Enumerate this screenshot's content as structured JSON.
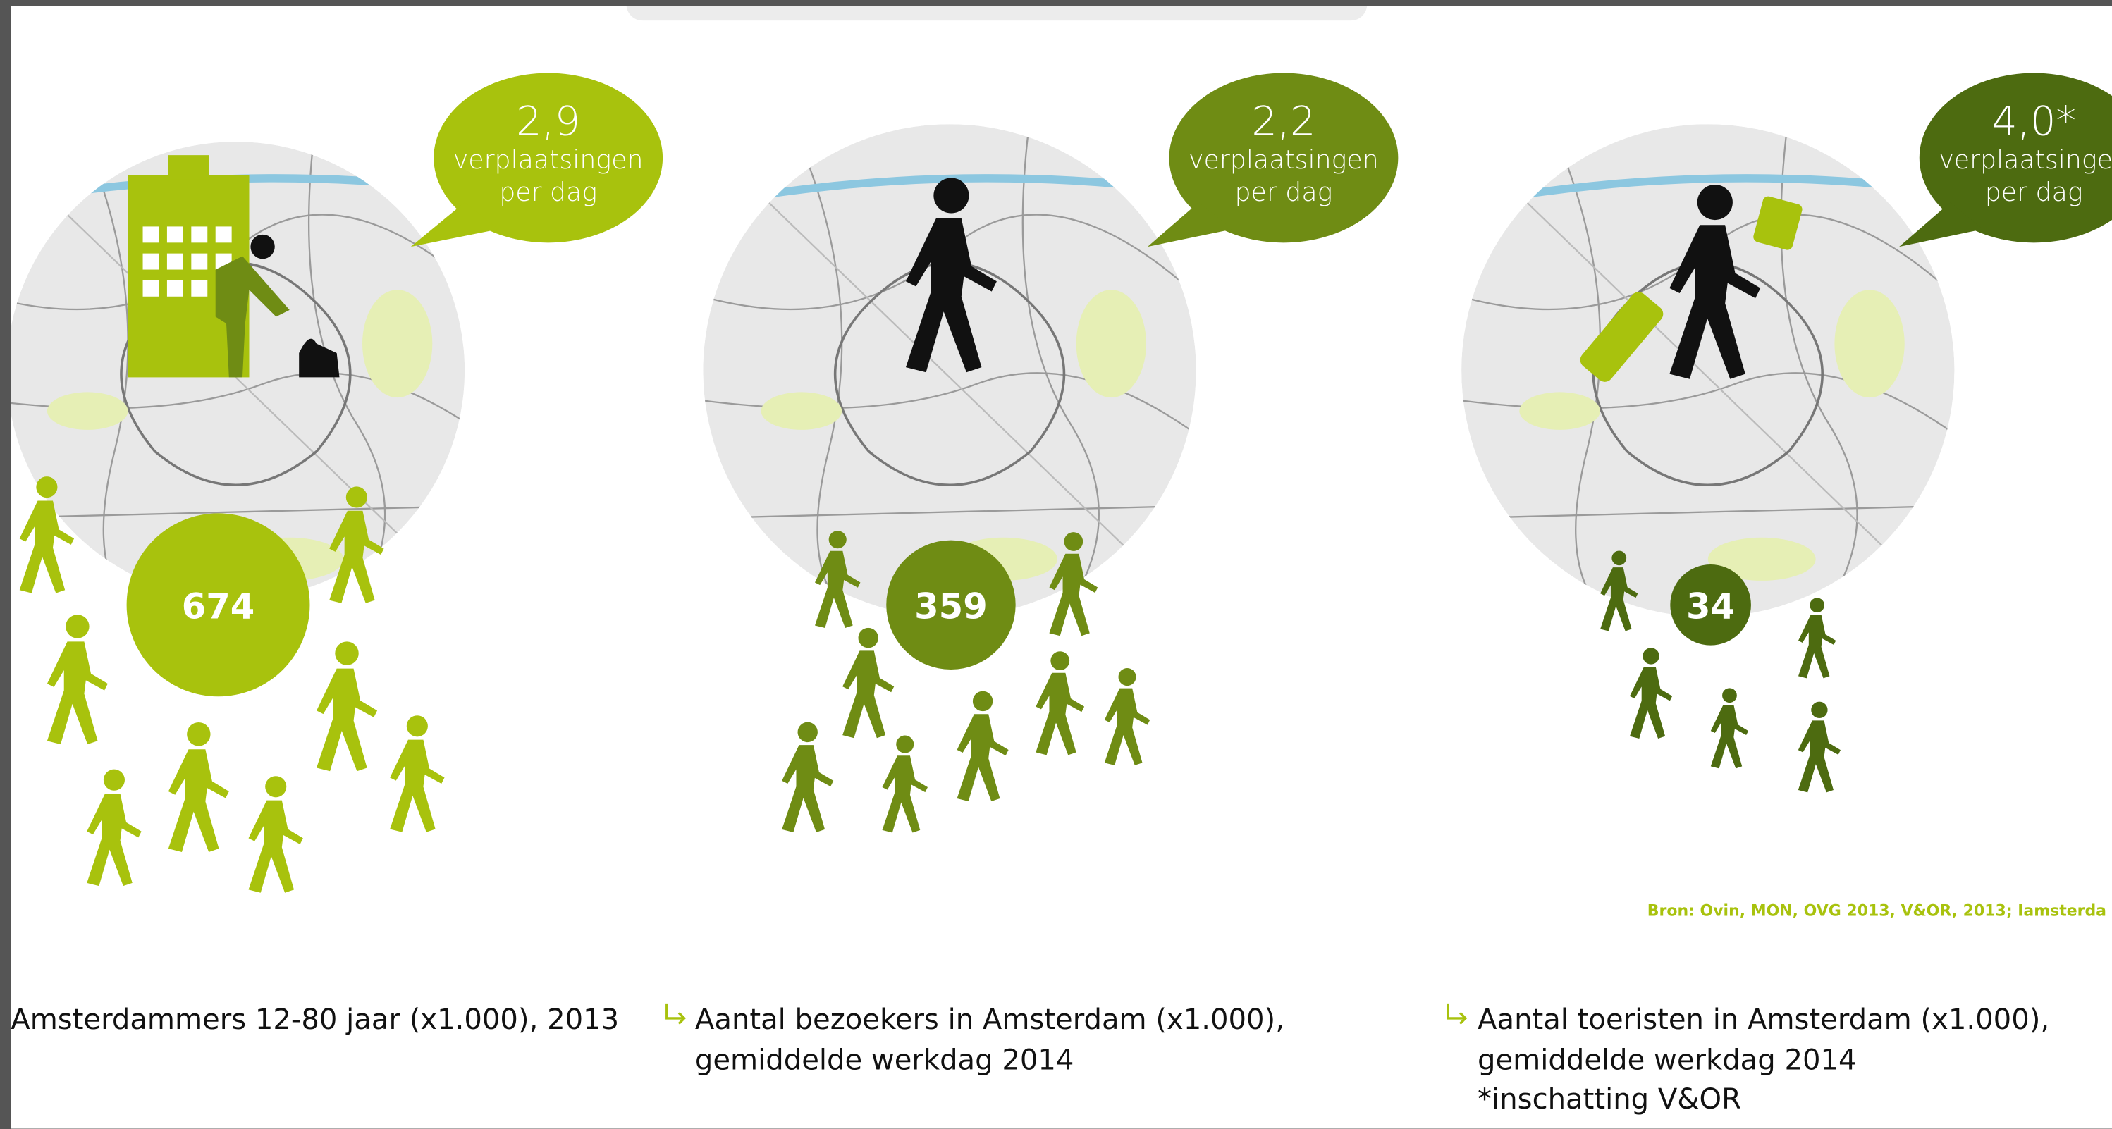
{
  "panels": [
    {
      "rate": "2,9",
      "unit": "verplaatsingen",
      "per": "per dag",
      "count": "674",
      "caption": [
        "Amsterdammers 12-80 jaar (x1.000), 2013"
      ]
    },
    {
      "rate": "2,2",
      "unit": "verplaatsingen",
      "per": "per dag",
      "count": "359",
      "caption": [
        "Aantal bezoekers in Amsterdam (x1.000),",
        "gemiddelde werkdag 2014"
      ]
    },
    {
      "rate": "4,0*",
      "unit": "verplaatsingen",
      "per": "per dag",
      "count": "34",
      "caption": [
        "Aantal toeristen in Amsterdam (x1.000),",
        "gemiddelde werkdag 2014",
        "*inschatting V&OR"
      ]
    }
  ],
  "source": "Bron: Ovin, MON, OVG 2013, V&OR, 2013; Iamsterda"
}
